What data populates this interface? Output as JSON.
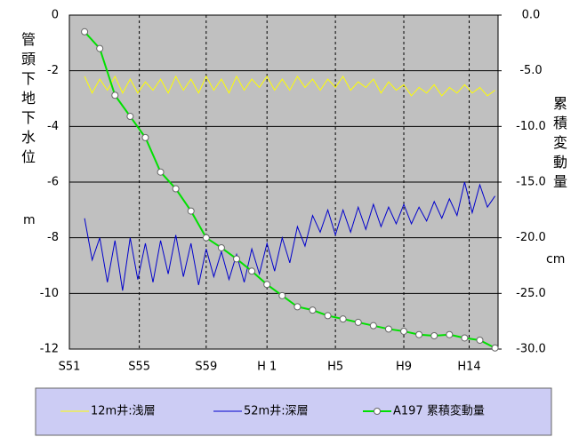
{
  "chart_data": {
    "type": "line",
    "y_label": "管頭下地下水位",
    "y_unit": "m",
    "y2_label": "累積変動量",
    "y2_unit": "cm",
    "xlim": [
      1976,
      2004.2
    ],
    "xticks": [
      {
        "value": 1976,
        "label": "S51"
      },
      {
        "value": 1980.6,
        "label": "S55"
      },
      {
        "value": 1985.0,
        "label": "S59"
      },
      {
        "value": 1989.0,
        "label": "H 1"
      },
      {
        "value": 1993.5,
        "label": "H5"
      },
      {
        "value": 1998.0,
        "label": "H9"
      },
      {
        "value": 2002.3,
        "label": "H14"
      }
    ],
    "ylim": [
      -12,
      0
    ],
    "yticks": [
      0,
      -2,
      -4,
      -6,
      -8,
      -10,
      -12
    ],
    "y2lim": [
      -30,
      0
    ],
    "y2ticks": [
      {
        "value": 0,
        "label": "0.0"
      },
      {
        "value": -5,
        "label": "-5.0"
      },
      {
        "value": -10,
        "label": "-10.0"
      },
      {
        "value": -15,
        "label": "-15.0"
      },
      {
        "value": -20,
        "label": "-20.0"
      },
      {
        "value": -25,
        "label": "-25.0"
      },
      {
        "value": -30,
        "label": "-30.0"
      }
    ],
    "grid": true,
    "series": [
      {
        "name": "12m井:浅層",
        "color": "#ffff00",
        "x": [
          1977,
          1977.5,
          1978,
          1978.5,
          1979,
          1979.5,
          1980,
          1980.5,
          1981,
          1981.5,
          1982,
          1982.5,
          1983,
          1983.5,
          1984,
          1984.5,
          1985,
          1985.5,
          1986,
          1986.5,
          1987,
          1987.5,
          1988,
          1988.5,
          1989,
          1989.5,
          1990,
          1990.5,
          1991,
          1991.5,
          1992,
          1992.5,
          1993,
          1993.5,
          1994,
          1994.5,
          1995,
          1995.5,
          1996,
          1996.5,
          1997,
          1997.5,
          1998,
          1998.5,
          1999,
          1999.5,
          2000,
          2000.5,
          2001,
          2001.5,
          2002,
          2002.5,
          2003,
          2003.5,
          2004
        ],
        "values": [
          -2.2,
          -2.8,
          -2.3,
          -2.7,
          -2.2,
          -2.8,
          -2.3,
          -2.8,
          -2.4,
          -2.7,
          -2.3,
          -2.8,
          -2.2,
          -2.7,
          -2.3,
          -2.8,
          -2.2,
          -2.7,
          -2.3,
          -2.8,
          -2.2,
          -2.7,
          -2.3,
          -2.6,
          -2.2,
          -2.7,
          -2.3,
          -2.7,
          -2.2,
          -2.6,
          -2.3,
          -2.7,
          -2.3,
          -2.6,
          -2.2,
          -2.7,
          -2.4,
          -2.6,
          -2.3,
          -2.8,
          -2.4,
          -2.7,
          -2.5,
          -2.9,
          -2.6,
          -2.8,
          -2.5,
          -2.9,
          -2.6,
          -2.8,
          -2.5,
          -2.8,
          -2.6,
          -2.9,
          -2.7
        ]
      },
      {
        "name": "52m井:深層",
        "color": "#0000cc",
        "x": [
          1977,
          1977.5,
          1978,
          1978.5,
          1979,
          1979.5,
          1980,
          1980.5,
          1981,
          1981.5,
          1982,
          1982.5,
          1983,
          1983.5,
          1984,
          1984.5,
          1985,
          1985.5,
          1986,
          1986.5,
          1987,
          1987.5,
          1988,
          1988.5,
          1989,
          1989.5,
          1990,
          1990.5,
          1991,
          1991.5,
          1992,
          1992.5,
          1993,
          1993.5,
          1994,
          1994.5,
          1995,
          1995.5,
          1996,
          1996.5,
          1997,
          1997.5,
          1998,
          1998.5,
          1999,
          1999.5,
          2000,
          2000.5,
          2001,
          2001.5,
          2002,
          2002.5,
          2003,
          2003.5,
          2004
        ],
        "values": [
          -7.3,
          -8.8,
          -8.0,
          -9.6,
          -8.1,
          -9.9,
          -8.0,
          -9.5,
          -8.2,
          -9.6,
          -8.1,
          -9.3,
          -7.9,
          -9.4,
          -8.2,
          -9.7,
          -8.4,
          -9.4,
          -8.5,
          -9.5,
          -8.6,
          -9.6,
          -8.4,
          -9.3,
          -8.2,
          -9.2,
          -8.0,
          -8.9,
          -7.6,
          -8.3,
          -7.2,
          -7.8,
          -7.0,
          -7.9,
          -7.0,
          -7.8,
          -6.9,
          -7.7,
          -6.8,
          -7.6,
          -6.9,
          -7.5,
          -6.8,
          -7.5,
          -6.9,
          -7.4,
          -6.7,
          -7.3,
          -6.6,
          -7.2,
          -6.0,
          -7.1,
          -6.1,
          -6.9,
          -6.5
        ]
      },
      {
        "name": "A197 累積変動量",
        "color": "#00e000",
        "axis": "y2",
        "x": [
          1977,
          1978,
          1979,
          1980,
          1981,
          1982,
          1983,
          1984,
          1985,
          1986,
          1987,
          1988,
          1989,
          1990,
          1991,
          1992,
          1993,
          1994,
          1995,
          1996,
          1997,
          1998,
          1999,
          2000,
          2001,
          2002,
          2003,
          2004
        ],
        "values": [
          -1.5,
          -3.0,
          -7.2,
          -9.1,
          -11.0,
          -14.1,
          -15.6,
          -17.6,
          -20.0,
          -20.9,
          -21.9,
          -23.0,
          -24.2,
          -25.2,
          -26.2,
          -26.5,
          -27.0,
          -27.3,
          -27.6,
          -27.9,
          -28.2,
          -28.4,
          -28.7,
          -28.8,
          -28.7,
          -29.0,
          -29.2,
          -29.9
        ]
      }
    ]
  }
}
